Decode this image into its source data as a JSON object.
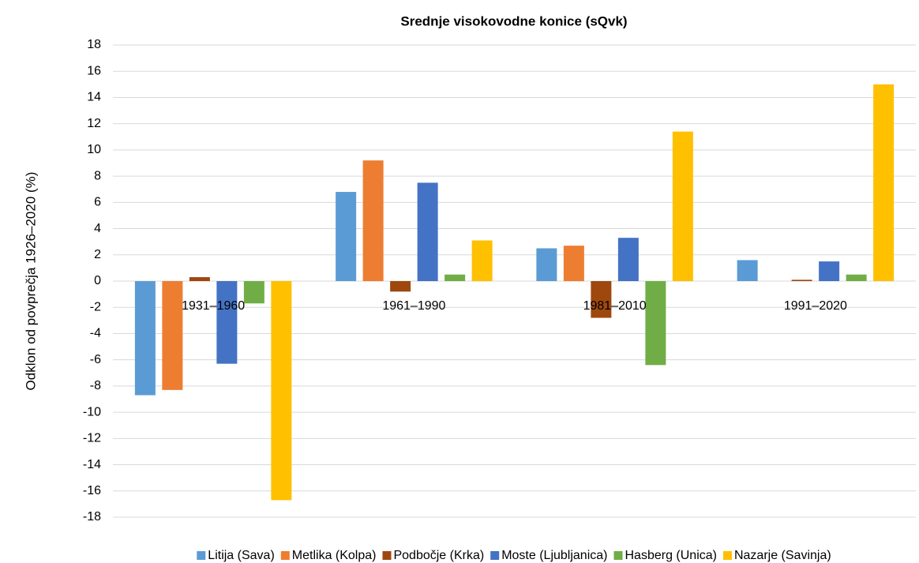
{
  "chart_data": {
    "type": "bar",
    "title": "Srednje visokovodne konice (sQvk)",
    "y_label": "Odklon od povprečja 1926–2020 (%)",
    "categories": [
      "1931–1960",
      "1961–1990",
      "1981–2010",
      "1991–2020"
    ],
    "series": [
      {
        "name": "Litija (Sava)",
        "color": "#5b9bd5",
        "values": [
          -8.7,
          6.8,
          2.5,
          1.6
        ]
      },
      {
        "name": "Metlika (Kolpa)",
        "color": "#ed7d31",
        "values": [
          -8.3,
          9.2,
          2.7,
          0
        ]
      },
      {
        "name": "Podbočje (Krka)",
        "color": "#9e480e",
        "values": [
          0.3,
          -0.8,
          -2.8,
          0.1
        ]
      },
      {
        "name": "Moste (Ljubljanica)",
        "color": "#4472c4",
        "values": [
          -6.3,
          7.5,
          3.3,
          1.5
        ]
      },
      {
        "name": "Hasberg (Unica)",
        "color": "#70ad47",
        "values": [
          -1.7,
          0.5,
          -6.4,
          0.5
        ]
      },
      {
        "name": "Nazarje (Savinja)",
        "color": "#ffc000",
        "values": [
          -16.7,
          3.1,
          11.4,
          15.0
        ]
      }
    ],
    "ylim": [
      -18,
      18
    ],
    "yticks": [
      18,
      16,
      14,
      12,
      10,
      8,
      6,
      4,
      2,
      0,
      -2,
      -4,
      -6,
      -8,
      -10,
      -12,
      -14,
      -16,
      -18
    ],
    "grid": true,
    "legend": "bottom"
  }
}
